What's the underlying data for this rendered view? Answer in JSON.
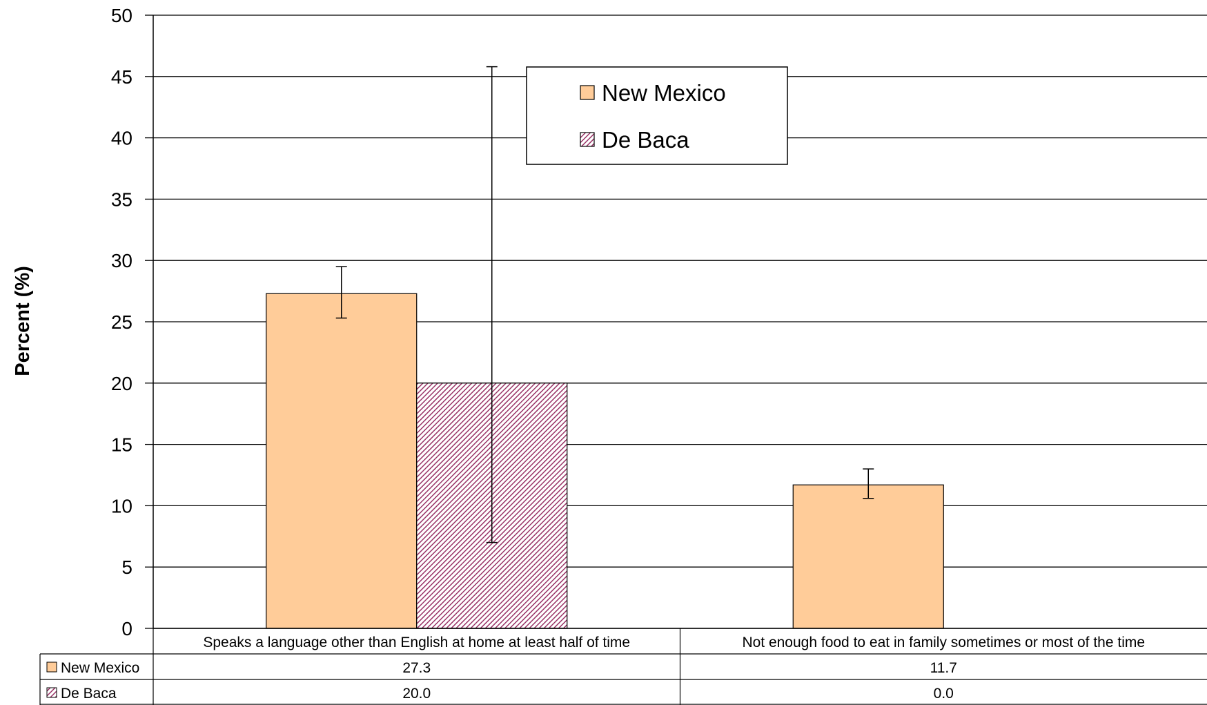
{
  "chart_data": {
    "type": "bar",
    "title": "",
    "xlabel": "",
    "ylabel": "Percent (%)",
    "ylim": [
      0,
      50
    ],
    "yticks": [
      0,
      5,
      10,
      15,
      20,
      25,
      30,
      35,
      40,
      45,
      50
    ],
    "grid": true,
    "legend_position": "top-center",
    "categories": [
      "Speaks a language other than English at home at least half of time",
      "Not enough food to eat in family sometimes or most of the time"
    ],
    "series": [
      {
        "name": "New Mexico",
        "color": "#ffcc99",
        "pattern": "solid",
        "values": [
          27.3,
          11.7
        ],
        "value_labels": [
          "27.3",
          "11.7"
        ],
        "error_low": [
          25.3,
          10.6
        ],
        "error_high": [
          29.5,
          13.0
        ]
      },
      {
        "name": "De Baca",
        "color": "#993366",
        "pattern": "diagonal-hatch",
        "values": [
          20.0,
          0.0
        ],
        "value_labels": [
          "20.0",
          "0.0"
        ],
        "error_low": [
          7.0,
          null
        ],
        "error_high": [
          45.8,
          null
        ]
      }
    ]
  }
}
